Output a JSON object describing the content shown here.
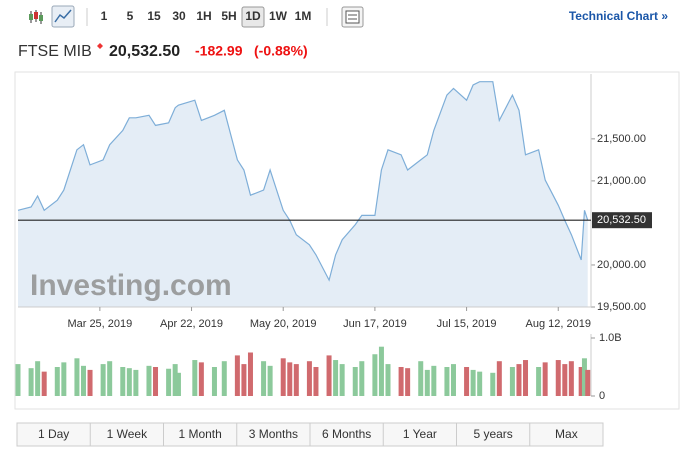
{
  "toolbar": {
    "intervals": [
      "1",
      "5",
      "15",
      "30",
      "1H",
      "5H",
      "1D",
      "1W",
      "1M"
    ],
    "active_interval": "1D",
    "link": "Technical Chart »"
  },
  "header": {
    "name": "FTSE MIB",
    "price": "20,532.50",
    "change": "-182.99",
    "change_percent": "(-0.88%)"
  },
  "chart_data": {
    "type": "line",
    "watermark": "Investing.com",
    "x": [
      "2019-02-28",
      "2019-03-04",
      "2019-03-06",
      "2019-03-08",
      "2019-03-12",
      "2019-03-14",
      "2019-03-18",
      "2019-03-20",
      "2019-03-22",
      "2019-03-26",
      "2019-03-28",
      "2019-04-01",
      "2019-04-03",
      "2019-04-05",
      "2019-04-09",
      "2019-04-11",
      "2019-04-15",
      "2019-04-17",
      "2019-04-18",
      "2019-04-23",
      "2019-04-25",
      "2019-04-29",
      "2019-05-02",
      "2019-05-06",
      "2019-05-08",
      "2019-05-10",
      "2019-05-14",
      "2019-05-16",
      "2019-05-20",
      "2019-05-22",
      "2019-05-24",
      "2019-05-28",
      "2019-05-30",
      "2019-06-03",
      "2019-06-05",
      "2019-06-07",
      "2019-06-11",
      "2019-06-13",
      "2019-06-17",
      "2019-06-19",
      "2019-06-21",
      "2019-06-25",
      "2019-06-27",
      "2019-07-01",
      "2019-07-03",
      "2019-07-05",
      "2019-07-09",
      "2019-07-11",
      "2019-07-15",
      "2019-07-17",
      "2019-07-19",
      "2019-07-23",
      "2019-07-25",
      "2019-07-29",
      "2019-07-31",
      "2019-08-02",
      "2019-08-06",
      "2019-08-08",
      "2019-08-12",
      "2019-08-14",
      "2019-08-16",
      "2019-08-19",
      "2019-08-20",
      "2019-08-21"
    ],
    "xlim": [
      "2019-02-28",
      "2019-08-22"
    ],
    "xticks": [
      {
        "value": "2019-03-25",
        "label": "Mar 25, 2019"
      },
      {
        "value": "2019-04-22",
        "label": "Apr 22, 2019"
      },
      {
        "value": "2019-05-20",
        "label": "May 20, 2019"
      },
      {
        "value": "2019-06-17",
        "label": "Jun 17, 2019"
      },
      {
        "value": "2019-07-15",
        "label": "Jul 15, 2019"
      },
      {
        "value": "2019-08-12",
        "label": "Aug 12, 2019"
      }
    ],
    "ylim": [
      19500,
      22200
    ],
    "yticks": [
      {
        "value": 19500,
        "label": "19,500.00"
      },
      {
        "value": 20000,
        "label": "20,000.00"
      },
      {
        "value": 21000,
        "label": "21,000.00"
      },
      {
        "value": 21500,
        "label": "21,500.00"
      }
    ],
    "series": [
      {
        "name": "FTSE MIB",
        "color": "#7eaed8",
        "values": [
          20650,
          20690,
          20820,
          20650,
          20770,
          20890,
          21370,
          21430,
          21190,
          21250,
          21430,
          21600,
          21750,
          21750,
          21780,
          21660,
          21690,
          21870,
          21900,
          21960,
          21720,
          21780,
          21840,
          21250,
          21130,
          20830,
          20890,
          21130,
          20650,
          20530,
          20360,
          20240,
          20120,
          19820,
          20120,
          20300,
          20480,
          20590,
          20590,
          21130,
          21370,
          21310,
          21130,
          21250,
          21310,
          21600,
          22020,
          22100,
          21960,
          22140,
          22180,
          22180,
          21720,
          22020,
          21840,
          21310,
          21370,
          21010,
          20710,
          20530,
          20360,
          20060,
          20650,
          20532.5
        ]
      }
    ],
    "last_value": 20532.5,
    "volume": {
      "up_color": "#8cc99b",
      "down_color": "#d06a6e",
      "ylim": [
        0,
        1.0
      ],
      "yticks": [
        {
          "value": 0,
          "label": "0"
        },
        {
          "value": 1.0,
          "label": "1.0B"
        }
      ],
      "values": [
        0.55,
        0.48,
        0.6,
        0.42,
        0.5,
        0.58,
        0.65,
        0.52,
        0.45,
        0.55,
        0.6,
        0.5,
        0.48,
        0.45,
        0.52,
        0.5,
        0.47,
        0.55,
        0.4,
        0.62,
        0.58,
        0.5,
        0.6,
        0.7,
        0.55,
        0.75,
        0.6,
        0.52,
        0.65,
        0.58,
        0.55,
        0.6,
        0.5,
        0.7,
        0.62,
        0.55,
        0.5,
        0.6,
        0.72,
        0.85,
        0.55,
        0.5,
        0.48,
        0.6,
        0.45,
        0.52,
        0.5,
        0.55,
        0.5,
        0.45,
        0.42,
        0.4,
        0.6,
        0.5,
        0.55,
        0.62,
        0.5,
        0.58,
        0.62,
        0.55,
        0.6,
        0.5,
        0.65,
        0.45
      ]
    }
  },
  "ranges": [
    "1 Day",
    "1 Week",
    "1 Month",
    "3 Months",
    "6 Months",
    "1 Year",
    "5 years",
    "Max"
  ]
}
